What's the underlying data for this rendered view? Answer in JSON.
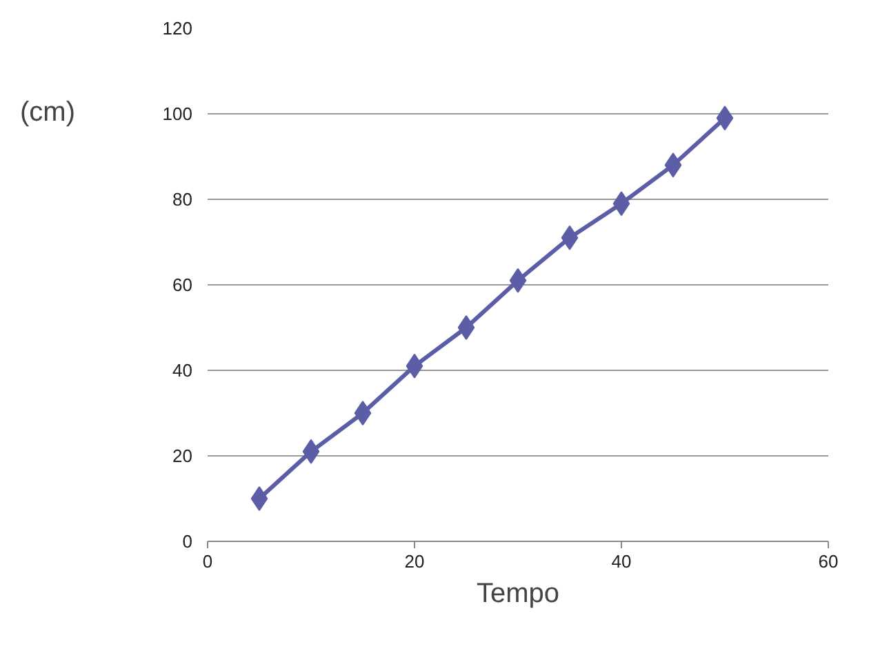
{
  "chart_data": {
    "type": "line",
    "xlabel": "Tempo",
    "ylabel": "(cm)",
    "x": [
      5,
      10,
      15,
      20,
      25,
      30,
      35,
      40,
      45,
      50
    ],
    "series": [
      {
        "color": "#5b5ea6",
        "values": [
          10,
          21,
          30,
          41,
          50,
          61,
          71,
          79,
          88,
          99
        ]
      }
    ],
    "xlim": [
      0,
      60
    ],
    "xticks": [
      0,
      20,
      40,
      60
    ],
    "ylim": [
      0,
      120
    ],
    "yticks": [
      0,
      20,
      40,
      60,
      80,
      100,
      120
    ],
    "grid": "y",
    "marker": "diamond",
    "line_style": "solid"
  }
}
